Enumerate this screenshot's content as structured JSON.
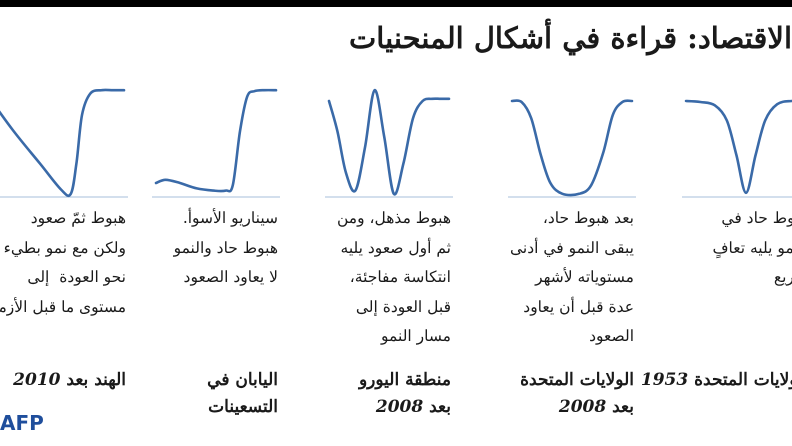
{
  "title": "الاقتصاد: قراءة في أشكال المنحنيات",
  "logo": "AFP",
  "colors": {
    "curve": "#3a6aa8",
    "baseline": "#b9cce2",
    "text": "#1a1a1a"
  },
  "chart_data": [
    {
      "type": "line",
      "shape": "V",
      "description_lines": [
        "هبوط حاد في",
        "النمو يليه تعافٍ",
        "سريع"
      ],
      "label_lines": [
        "الولايات المتحدة"
      ],
      "date": "1953",
      "series": [
        {
          "x": [
            0,
            0.12,
            0.24,
            0.34,
            0.42,
            0.5,
            0.58,
            0.66,
            0.76,
            0.88,
            1
          ],
          "values": [
            0.88,
            0.87,
            0.84,
            0.7,
            0.38,
            0.03,
            0.38,
            0.7,
            0.85,
            0.88,
            0.88
          ]
        }
      ],
      "ylim": [
        0,
        1
      ]
    },
    {
      "type": "line",
      "shape": "U",
      "description_lines": [
        "بعد هبوط حاد،",
        "يبقى النمو في أدنى",
        "مستوياته لأشهر",
        "عدة قبل أن يعاود",
        "الصعود"
      ],
      "label_lines": [
        "الولايات المتحدة",
        "بعد"
      ],
      "date": "2008",
      "series": [
        {
          "x": [
            0,
            0.08,
            0.16,
            0.24,
            0.32,
            0.42,
            0.56,
            0.66,
            0.76,
            0.84,
            0.92,
            1
          ],
          "values": [
            0.88,
            0.87,
            0.72,
            0.38,
            0.12,
            0.02,
            0.02,
            0.1,
            0.4,
            0.75,
            0.87,
            0.88
          ]
        }
      ],
      "ylim": [
        0,
        1
      ]
    },
    {
      "type": "line",
      "shape": "W",
      "description_lines": [
        "هبوط مذهل، ومن",
        "ثم أول صعود يليه",
        "انتكاسة مفاجئة،",
        "قبل العودة إلى",
        "مسار النمو"
      ],
      "label_lines": [
        "منطقة اليورو",
        "بعد"
      ],
      "date": "2008",
      "series": [
        {
          "x": [
            0,
            0.07,
            0.14,
            0.22,
            0.3,
            0.38,
            0.46,
            0.54,
            0.62,
            0.7,
            0.78,
            0.86,
            0.93,
            1
          ],
          "values": [
            0.88,
            0.6,
            0.22,
            0.05,
            0.45,
            0.98,
            0.55,
            0.02,
            0.3,
            0.72,
            0.88,
            0.9,
            0.9,
            0.9
          ]
        }
      ],
      "ylim": [
        0,
        1
      ]
    },
    {
      "type": "line",
      "shape": "L",
      "description_lines": [
        "سيناريو الأسوأ.",
        "هبوط حاد والنمو",
        "لا يعاود الصعود"
      ],
      "label_lines": [
        "اليابان في",
        "التسعينات"
      ],
      "date": "",
      "series": [
        {
          "x": [
            0,
            0.08,
            0.2,
            0.34,
            0.48,
            0.58,
            0.64,
            0.7,
            0.76,
            0.82,
            0.9,
            1
          ],
          "values": [
            0.12,
            0.15,
            0.12,
            0.07,
            0.05,
            0.05,
            0.1,
            0.6,
            0.92,
            0.97,
            0.98,
            0.98
          ]
        }
      ],
      "ylim": [
        0,
        1
      ]
    },
    {
      "type": "line",
      "shape": "check",
      "description_lines": [
        "هبوط ثمّ صعود",
        "ولكن مع نمو بطيء",
        "نحو العودة  إلى",
        "مستوى ما قبل الأزمة"
      ],
      "label_lines": [
        "الهند بعد"
      ],
      "date": "2010",
      "series": [
        {
          "x": [
            0,
            0.2,
            0.4,
            0.55,
            0.62,
            0.66,
            0.7,
            0.76,
            0.84,
            0.92,
            1
          ],
          "values": [
            0.98,
            0.62,
            0.3,
            0.06,
            0.02,
            0.3,
            0.75,
            0.95,
            0.98,
            0.98,
            0.98
          ]
        }
      ],
      "ylim": [
        0,
        1
      ]
    }
  ]
}
